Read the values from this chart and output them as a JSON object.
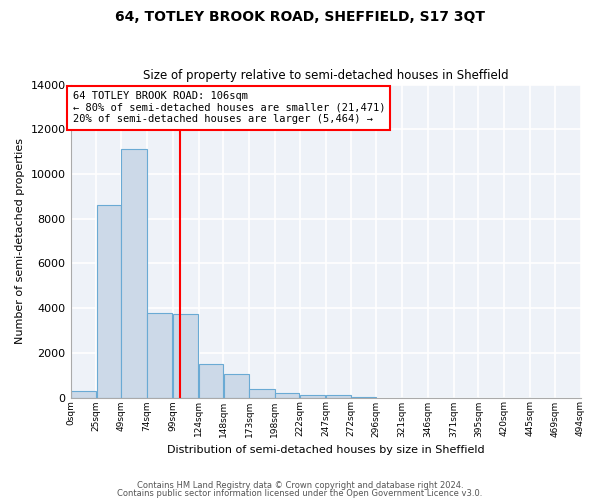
{
  "title": "64, TOTLEY BROOK ROAD, SHEFFIELD, S17 3QT",
  "subtitle": "Size of property relative to semi-detached houses in Sheffield",
  "xlabel": "Distribution of semi-detached houses by size in Sheffield",
  "ylabel": "Number of semi-detached properties",
  "bar_color": "#ccd9e8",
  "bar_edge_color": "#6aaad4",
  "background_color": "#eef2f8",
  "grid_color": "#ffffff",
  "annotation_text": "64 TOTLEY BROOK ROAD: 106sqm\n← 80% of semi-detached houses are smaller (21,471)\n20% of semi-detached houses are larger (5,464) →",
  "red_line_x": 106,
  "ylim": [
    0,
    14000
  ],
  "bins": [
    0,
    25,
    49,
    74,
    99,
    124,
    148,
    173,
    198,
    222,
    247,
    272,
    296,
    321,
    346,
    371,
    395,
    420,
    445,
    469,
    494
  ],
  "bin_labels": [
    "0sqm",
    "25sqm",
    "49sqm",
    "74sqm",
    "99sqm",
    "124sqm",
    "148sqm",
    "173sqm",
    "198sqm",
    "222sqm",
    "247sqm",
    "272sqm",
    "296sqm",
    "321sqm",
    "346sqm",
    "371sqm",
    "395sqm",
    "420sqm",
    "445sqm",
    "469sqm",
    "494sqm"
  ],
  "bar_heights": [
    300,
    8600,
    11100,
    3800,
    3750,
    1500,
    1050,
    400,
    200,
    120,
    100,
    30,
    0,
    0,
    0,
    0,
    0,
    0,
    0,
    0
  ],
  "footnote1": "Contains HM Land Registry data © Crown copyright and database right 2024.",
  "footnote2": "Contains public sector information licensed under the Open Government Licence v3.0."
}
